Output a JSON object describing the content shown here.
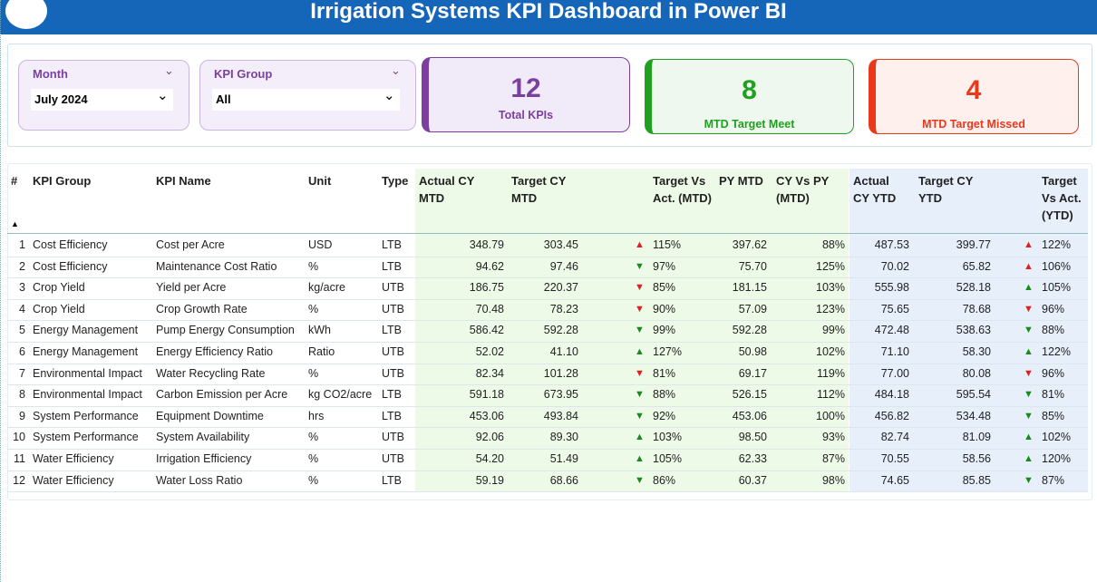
{
  "header": {
    "title": "Irrigation Systems KPI Dashboard in Power BI"
  },
  "filters": [
    {
      "label": "Month",
      "value": "July 2024"
    },
    {
      "label": "KPI Group",
      "value": "All"
    }
  ],
  "cards": [
    {
      "value": "12",
      "label": "Total KPIs",
      "color": "#7b3fa0",
      "bg": "#f1eaf8"
    },
    {
      "value": "8",
      "label": "MTD Target Meet",
      "color": "#1fa11f",
      "bg": "#eef8ee"
    },
    {
      "value": "4",
      "label": "MTD Target Missed",
      "color": "#e8391d",
      "bg": "#fdf0ed"
    }
  ],
  "table": {
    "columns": [
      "#",
      "KPI Group",
      "KPI Name",
      "Unit",
      "Type",
      "Actual CY MTD",
      "Target CY MTD",
      "Target Vs Act. (MTD)",
      "PY MTD",
      "CY Vs PY (MTD)",
      "Actual CY YTD",
      "Target CY YTD",
      "Target Vs Act. (YTD)"
    ],
    "rows": [
      {
        "cells": [
          "1",
          "Cost Efficiency",
          "Cost per Acre",
          "USD",
          "LTB",
          "348.79",
          "303.45",
          "115%",
          "397.62",
          "88%",
          "487.53",
          "399.77",
          "122%"
        ],
        "mtd_arrow": {
          "symbol": "▲",
          "color": "#e02020"
        },
        "ytd_arrow": {
          "symbol": "▲",
          "color": "#e02020"
        }
      },
      {
        "cells": [
          "2",
          "Cost Efficiency",
          "Maintenance Cost Ratio",
          "%",
          "LTB",
          "94.62",
          "97.46",
          "97%",
          "75.70",
          "125%",
          "70.02",
          "65.82",
          "106%"
        ],
        "mtd_arrow": {
          "symbol": "▼",
          "color": "#1a8a1a"
        },
        "ytd_arrow": {
          "symbol": "▲",
          "color": "#e02020"
        }
      },
      {
        "cells": [
          "3",
          "Crop Yield",
          "Yield per Acre",
          "kg/acre",
          "UTB",
          "186.75",
          "220.37",
          "85%",
          "181.15",
          "103%",
          "555.98",
          "528.18",
          "105%"
        ],
        "mtd_arrow": {
          "symbol": "▼",
          "color": "#e02020"
        },
        "ytd_arrow": {
          "symbol": "▲",
          "color": "#1a8a1a"
        }
      },
      {
        "cells": [
          "4",
          "Crop Yield",
          "Crop Growth Rate",
          "%",
          "UTB",
          "70.48",
          "78.23",
          "90%",
          "57.09",
          "123%",
          "75.65",
          "78.68",
          "96%"
        ],
        "mtd_arrow": {
          "symbol": "▼",
          "color": "#e02020"
        },
        "ytd_arrow": {
          "symbol": "▼",
          "color": "#e02020"
        }
      },
      {
        "cells": [
          "5",
          "Energy Management",
          "Pump Energy Consumption",
          "kWh",
          "LTB",
          "586.42",
          "592.28",
          "99%",
          "592.28",
          "99%",
          "472.48",
          "538.63",
          "88%"
        ],
        "mtd_arrow": {
          "symbol": "▼",
          "color": "#1a8a1a"
        },
        "ytd_arrow": {
          "symbol": "▼",
          "color": "#1a8a1a"
        }
      },
      {
        "cells": [
          "6",
          "Energy Management",
          "Energy Efficiency Ratio",
          "Ratio",
          "UTB",
          "52.02",
          "41.10",
          "127%",
          "50.98",
          "102%",
          "71.10",
          "58.30",
          "122%"
        ],
        "mtd_arrow": {
          "symbol": "▲",
          "color": "#1a8a1a"
        },
        "ytd_arrow": {
          "symbol": "▲",
          "color": "#1a8a1a"
        }
      },
      {
        "cells": [
          "7",
          "Environmental Impact",
          "Water Recycling Rate",
          "%",
          "UTB",
          "82.34",
          "101.28",
          "81%",
          "69.17",
          "119%",
          "77.00",
          "80.08",
          "96%"
        ],
        "mtd_arrow": {
          "symbol": "▼",
          "color": "#e02020"
        },
        "ytd_arrow": {
          "symbol": "▼",
          "color": "#e02020"
        }
      },
      {
        "cells": [
          "8",
          "Environmental Impact",
          "Carbon Emission per Acre",
          "kg CO2/acre",
          "LTB",
          "591.18",
          "673.95",
          "88%",
          "526.15",
          "112%",
          "484.18",
          "595.54",
          "81%"
        ],
        "mtd_arrow": {
          "symbol": "▼",
          "color": "#1a8a1a"
        },
        "ytd_arrow": {
          "symbol": "▼",
          "color": "#1a8a1a"
        }
      },
      {
        "cells": [
          "9",
          "System Performance",
          "Equipment Downtime",
          "hrs",
          "LTB",
          "453.06",
          "493.84",
          "92%",
          "453.06",
          "100%",
          "456.82",
          "534.48",
          "85%"
        ],
        "mtd_arrow": {
          "symbol": "▼",
          "color": "#1a8a1a"
        },
        "ytd_arrow": {
          "symbol": "▼",
          "color": "#1a8a1a"
        }
      },
      {
        "cells": [
          "10",
          "System Performance",
          "System Availability",
          "%",
          "UTB",
          "92.06",
          "89.30",
          "103%",
          "98.50",
          "93%",
          "82.74",
          "81.09",
          "102%"
        ],
        "mtd_arrow": {
          "symbol": "▲",
          "color": "#1a8a1a"
        },
        "ytd_arrow": {
          "symbol": "▲",
          "color": "#1a8a1a"
        }
      },
      {
        "cells": [
          "11",
          "Water Efficiency",
          "Irrigation Efficiency",
          "%",
          "UTB",
          "54.20",
          "51.49",
          "105%",
          "62.33",
          "87%",
          "70.55",
          "58.56",
          "120%"
        ],
        "mtd_arrow": {
          "symbol": "▲",
          "color": "#1a8a1a"
        },
        "ytd_arrow": {
          "symbol": "▲",
          "color": "#1a8a1a"
        }
      },
      {
        "cells": [
          "12",
          "Water Efficiency",
          "Water Loss Ratio",
          "%",
          "LTB",
          "59.19",
          "68.66",
          "86%",
          "60.37",
          "98%",
          "74.65",
          "85.85",
          "87%"
        ],
        "mtd_arrow": {
          "symbol": "▼",
          "color": "#1a8a1a"
        },
        "ytd_arrow": {
          "symbol": "▼",
          "color": "#1a8a1a"
        }
      }
    ]
  }
}
